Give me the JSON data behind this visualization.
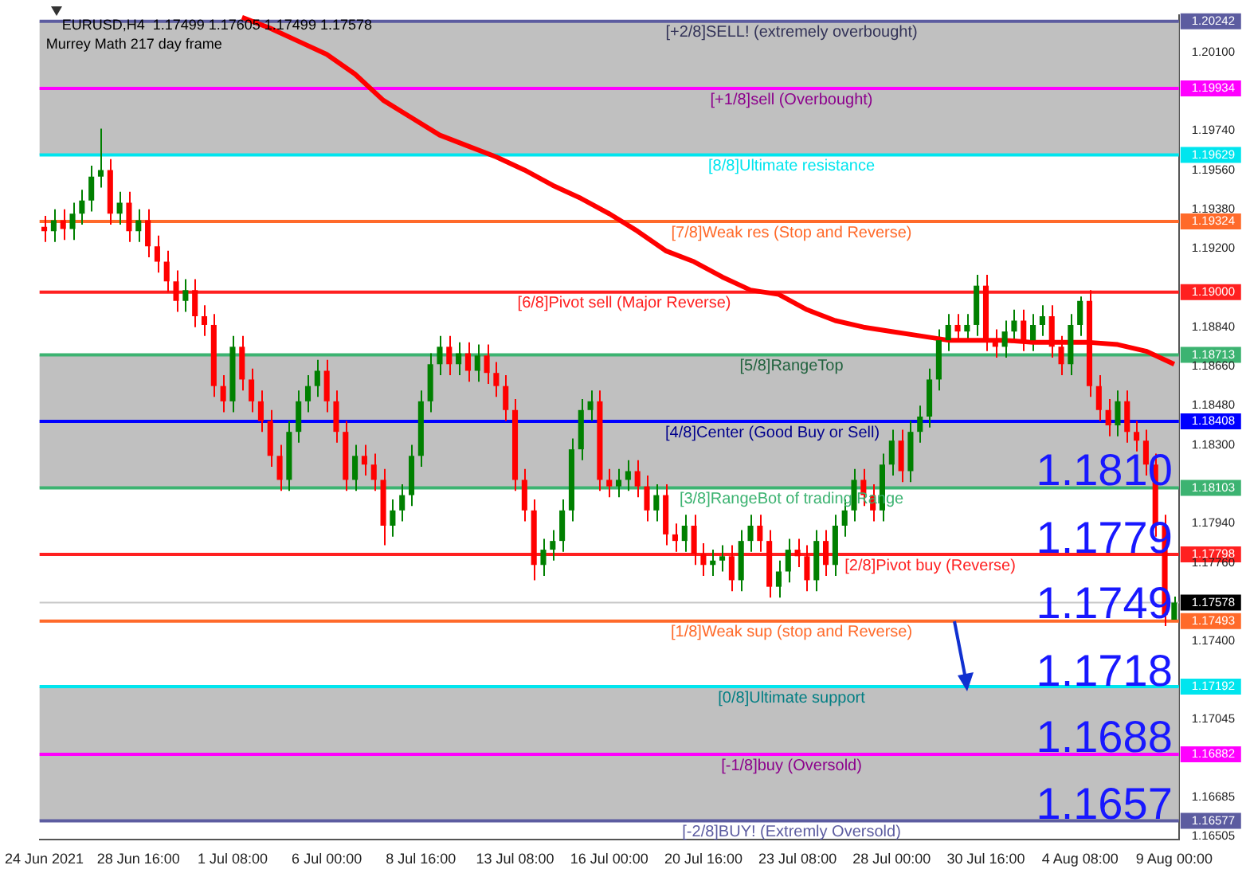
{
  "chart_data": {
    "type": "candlestick",
    "title": "EURUSD,H4  1.17499 1.17605 1.17499 1.17578",
    "subtitle": "Murrey Math 217 day frame",
    "categories": [
      "24 Jun 2021",
      null,
      null,
      null,
      null,
      null,
      null,
      null,
      null,
      null,
      "28 Jun 16:00",
      null,
      null,
      null,
      null,
      null,
      null,
      null,
      null,
      null,
      "1 Jul 08:00",
      null,
      null,
      null,
      null,
      null,
      null,
      null,
      null,
      null,
      "6 Jul 00:00",
      null,
      null,
      null,
      null,
      null,
      null,
      null,
      null,
      null,
      "8 Jul 16:00",
      null,
      null,
      null,
      null,
      null,
      null,
      null,
      null,
      null,
      "13 Jul 08:00",
      null,
      null,
      null,
      null,
      null,
      null,
      null,
      null,
      null,
      "16 Jul 00:00",
      null,
      null,
      null,
      null,
      null,
      null,
      null,
      null,
      null,
      "20 Jul 16:00",
      null,
      null,
      null,
      null,
      null,
      null,
      null,
      null,
      null,
      "23 Jul 08:00",
      null,
      null,
      null,
      null,
      null,
      null,
      null,
      null,
      null,
      "28 Jul 00:00",
      null,
      null,
      null,
      null,
      null,
      null,
      null,
      null,
      null,
      "30 Jul 16:00",
      null,
      null,
      null,
      null,
      null,
      null,
      null,
      null,
      null,
      "4 Aug 08:00",
      null,
      null,
      null,
      null,
      null,
      null,
      null,
      null,
      null,
      "9 Aug 00:00"
    ],
    "series": [
      {
        "type": "candlestick",
        "ohlc": [
          [
            1.193,
            1.1935,
            1.1923,
            1.1928
          ],
          [
            1.1928,
            1.1938,
            1.1923,
            1.1933
          ],
          [
            1.1933,
            1.1938,
            1.1924,
            1.1929
          ],
          [
            1.1929,
            1.1941,
            1.1924,
            1.1936
          ],
          [
            1.1936,
            1.1947,
            1.1931,
            1.1942
          ],
          [
            1.1942,
            1.1958,
            1.1937,
            1.1953
          ],
          [
            1.1953,
            1.1975,
            1.1948,
            1.1956
          ],
          [
            1.1956,
            1.1961,
            1.1931,
            1.1936
          ],
          [
            1.1936,
            1.1946,
            1.1931,
            1.1941
          ],
          [
            1.1941,
            1.1946,
            1.1923,
            1.1928
          ],
          [
            1.1928,
            1.1938,
            1.1923,
            1.1933
          ],
          [
            1.1933,
            1.1938,
            1.1916,
            1.1921
          ],
          [
            1.1921,
            1.1926,
            1.1909,
            1.1914
          ],
          [
            1.1914,
            1.1919,
            1.19,
            1.1905
          ],
          [
            1.1905,
            1.191,
            1.1891,
            1.1896
          ],
          [
            1.1896,
            1.1906,
            1.1891,
            1.1901
          ],
          [
            1.1901,
            1.1906,
            1.1884,
            1.1889
          ],
          [
            1.1889,
            1.1894,
            1.188,
            1.1885
          ],
          [
            1.1885,
            1.189,
            1.1852,
            1.1857
          ],
          [
            1.1857,
            1.1862,
            1.1845,
            1.185
          ],
          [
            1.185,
            1.188,
            1.1845,
            1.1875
          ],
          [
            1.1875,
            1.188,
            1.1855,
            1.186
          ],
          [
            1.186,
            1.1865,
            1.1845,
            1.185
          ],
          [
            1.185,
            1.1855,
            1.1836,
            1.1841
          ],
          [
            1.1841,
            1.1846,
            1.182,
            1.1825
          ],
          [
            1.1825,
            1.183,
            1.1809,
            1.1814
          ],
          [
            1.1814,
            1.1841,
            1.1809,
            1.1836
          ],
          [
            1.1836,
            1.1855,
            1.1831,
            1.185
          ],
          [
            1.185,
            1.1862,
            1.1845,
            1.1857
          ],
          [
            1.1857,
            1.1869,
            1.1852,
            1.1864
          ],
          [
            1.1864,
            1.1869,
            1.1845,
            1.185
          ],
          [
            1.185,
            1.1855,
            1.1831,
            1.1836
          ],
          [
            1.1836,
            1.1841,
            1.1809,
            1.1814
          ],
          [
            1.1814,
            1.183,
            1.1809,
            1.1825
          ],
          [
            1.1825,
            1.183,
            1.1816,
            1.1821
          ],
          [
            1.1821,
            1.1826,
            1.1809,
            1.1814
          ],
          [
            1.1814,
            1.1819,
            1.1784,
            1.1793
          ],
          [
            1.1793,
            1.1805,
            1.1788,
            1.18
          ],
          [
            1.18,
            1.1812,
            1.1795,
            1.1807
          ],
          [
            1.1807,
            1.183,
            1.1802,
            1.1825
          ],
          [
            1.1825,
            1.1855,
            1.182,
            1.185
          ],
          [
            1.185,
            1.1872,
            1.1845,
            1.1867
          ],
          [
            1.1867,
            1.188,
            1.1862,
            1.1875
          ],
          [
            1.1875,
            1.188,
            1.1862,
            1.1867
          ],
          [
            1.1867,
            1.1877,
            1.1862,
            1.1872
          ],
          [
            1.1872,
            1.1877,
            1.1859,
            1.1864
          ],
          [
            1.1864,
            1.1876,
            1.1859,
            1.1871
          ],
          [
            1.1871,
            1.1876,
            1.1858,
            1.1863
          ],
          [
            1.1863,
            1.1868,
            1.1852,
            1.1857
          ],
          [
            1.1857,
            1.1862,
            1.1841,
            1.1846
          ],
          [
            1.1846,
            1.1851,
            1.1809,
            1.1814
          ],
          [
            1.1814,
            1.1819,
            1.1795,
            1.18
          ],
          [
            1.18,
            1.1805,
            1.1768,
            1.1775
          ],
          [
            1.1775,
            1.1787,
            1.177,
            1.1782
          ],
          [
            1.1782,
            1.1791,
            1.1777,
            1.1786
          ],
          [
            1.1786,
            1.1805,
            1.1781,
            1.18
          ],
          [
            1.18,
            1.1833,
            1.1795,
            1.1828
          ],
          [
            1.1828,
            1.1851,
            1.1823,
            1.1846
          ],
          [
            1.1846,
            1.1855,
            1.1841,
            1.185
          ],
          [
            1.185,
            1.1855,
            1.1809,
            1.1814
          ],
          [
            1.1814,
            1.1819,
            1.1806,
            1.1811
          ],
          [
            1.1811,
            1.1819,
            1.1806,
            1.1814
          ],
          [
            1.1814,
            1.1823,
            1.1809,
            1.1818
          ],
          [
            1.1818,
            1.1823,
            1.1806,
            1.1811
          ],
          [
            1.1811,
            1.1816,
            1.1795,
            1.18
          ],
          [
            1.18,
            1.1812,
            1.1795,
            1.1807
          ],
          [
            1.1807,
            1.1812,
            1.1784,
            1.1789
          ],
          [
            1.1789,
            1.1794,
            1.1781,
            1.1786
          ],
          [
            1.1786,
            1.1798,
            1.1781,
            1.1793
          ],
          [
            1.1793,
            1.1798,
            1.1775,
            1.178
          ],
          [
            1.178,
            1.1785,
            1.177,
            1.1775
          ],
          [
            1.1775,
            1.1782,
            1.177,
            1.1777
          ],
          [
            1.1777,
            1.1784,
            1.1772,
            1.1779
          ],
          [
            1.1779,
            1.1784,
            1.1763,
            1.1768
          ],
          [
            1.1768,
            1.1791,
            1.1763,
            1.1786
          ],
          [
            1.1786,
            1.1798,
            1.1781,
            1.1793
          ],
          [
            1.1793,
            1.1798,
            1.1781,
            1.1786
          ],
          [
            1.1786,
            1.1791,
            1.176,
            1.1765
          ],
          [
            1.1765,
            1.1777,
            1.176,
            1.1772
          ],
          [
            1.1772,
            1.1787,
            1.1767,
            1.1782
          ],
          [
            1.1782,
            1.1787,
            1.1774,
            1.1779
          ],
          [
            1.1779,
            1.1784,
            1.1763,
            1.1768
          ],
          [
            1.1768,
            1.1791,
            1.1763,
            1.1786
          ],
          [
            1.1786,
            1.1791,
            1.177,
            1.1775
          ],
          [
            1.1775,
            1.1798,
            1.177,
            1.1793
          ],
          [
            1.1793,
            1.1805,
            1.1788,
            1.18
          ],
          [
            1.18,
            1.1819,
            1.1795,
            1.1814
          ],
          [
            1.1814,
            1.1819,
            1.1802,
            1.1807
          ],
          [
            1.1807,
            1.1812,
            1.1795,
            1.18
          ],
          [
            1.18,
            1.1826,
            1.1795,
            1.1821
          ],
          [
            1.1821,
            1.1837,
            1.1816,
            1.1832
          ],
          [
            1.1832,
            1.1837,
            1.1813,
            1.1818
          ],
          [
            1.1818,
            1.1841,
            1.1813,
            1.1836
          ],
          [
            1.1836,
            1.1848,
            1.1831,
            1.1843
          ],
          [
            1.1843,
            1.1865,
            1.1838,
            1.186
          ],
          [
            1.186,
            1.1883,
            1.1855,
            1.1878
          ],
          [
            1.1878,
            1.189,
            1.1873,
            1.1885
          ],
          [
            1.1885,
            1.189,
            1.1877,
            1.1882
          ],
          [
            1.1882,
            1.189,
            1.1877,
            1.1885
          ],
          [
            1.1885,
            1.1908,
            1.188,
            1.1903
          ],
          [
            1.1903,
            1.1908,
            1.1873,
            1.1878
          ],
          [
            1.1878,
            1.1883,
            1.187,
            1.1875
          ],
          [
            1.1875,
            1.1887,
            1.187,
            1.1882
          ],
          [
            1.1882,
            1.1892,
            1.1877,
            1.1887
          ],
          [
            1.1887,
            1.1892,
            1.1873,
            1.1878
          ],
          [
            1.1878,
            1.189,
            1.1873,
            1.1885
          ],
          [
            1.1885,
            1.1894,
            1.188,
            1.1889
          ],
          [
            1.1889,
            1.1894,
            1.187,
            1.1875
          ],
          [
            1.1875,
            1.188,
            1.1862,
            1.1867
          ],
          [
            1.1867,
            1.189,
            1.1862,
            1.1885
          ],
          [
            1.1885,
            1.1898,
            1.188,
            1.1896
          ],
          [
            1.1896,
            1.1901,
            1.1852,
            1.1857
          ],
          [
            1.1857,
            1.1862,
            1.1841,
            1.1846
          ],
          [
            1.1846,
            1.1851,
            1.1834,
            1.1839
          ],
          [
            1.1839,
            1.1855,
            1.1834,
            1.185
          ],
          [
            1.185,
            1.1855,
            1.1831,
            1.1836
          ],
          [
            1.1836,
            1.1841,
            1.1827,
            1.1832
          ],
          [
            1.1832,
            1.1837,
            1.1816,
            1.1821
          ],
          [
            1.1821,
            1.1826,
            1.1788,
            1.1793
          ],
          [
            1.1793,
            1.1798,
            1.1747,
            1.1752
          ],
          [
            1.17499,
            1.17605,
            1.17499,
            1.17578
          ]
        ],
        "colors": [
          "#ff0000",
          "#008000",
          "#ff0000",
          "#008000",
          "#008000",
          "#008000",
          "#008000",
          "#ff0000",
          "#008000",
          "#ff0000",
          "#008000",
          "#ff0000",
          "#ff0000",
          "#ff0000",
          "#ff0000",
          "#008000",
          "#ff0000",
          "#ff0000",
          "#ff0000",
          "#ff0000",
          "#008000",
          "#ff0000",
          "#ff0000",
          "#ff0000",
          "#ff0000",
          "#ff0000",
          "#008000",
          "#008000",
          "#008000",
          "#008000",
          "#ff0000",
          "#ff0000",
          "#ff0000",
          "#008000",
          "#ff0000",
          "#ff0000",
          "#ff0000",
          "#008000",
          "#008000",
          "#008000",
          "#008000",
          "#008000",
          "#008000",
          "#ff0000",
          "#008000",
          "#ff0000",
          "#008000",
          "#ff0000",
          "#ff0000",
          "#ff0000",
          "#ff0000",
          "#ff0000",
          "#ff0000",
          "#008000",
          "#008000",
          "#008000",
          "#008000",
          "#008000",
          "#008000",
          "#ff0000",
          "#ff0000",
          "#008000",
          "#008000",
          "#ff0000",
          "#ff0000",
          "#008000",
          "#ff0000",
          "#ff0000",
          "#008000",
          "#ff0000",
          "#ff0000",
          "#008000",
          "#008000",
          "#ff0000",
          "#008000",
          "#008000",
          "#ff0000",
          "#ff0000",
          "#008000",
          "#008000",
          "#ff0000",
          "#ff0000",
          "#008000",
          "#ff0000",
          "#008000",
          "#008000",
          "#008000",
          "#ff0000",
          "#ff0000",
          "#008000",
          "#008000",
          "#ff0000",
          "#008000",
          "#008000",
          "#008000",
          "#008000",
          "#008000",
          "#ff0000",
          "#008000",
          "#008000",
          "#ff0000",
          "#ff0000",
          "#008000",
          "#008000",
          "#ff0000",
          "#008000",
          "#008000",
          "#ff0000",
          "#ff0000",
          "#008000",
          "#008000",
          "#ff0000",
          "#ff0000",
          "#ff0000",
          "#008000",
          "#ff0000",
          "#ff0000",
          "#ff0000",
          "#ff0000",
          "#ff0000",
          "#008000"
        ]
      },
      {
        "type": "line",
        "color": "#ff0000",
        "values": [
          null,
          null,
          null,
          null,
          null,
          null,
          null,
          null,
          null,
          null,
          null,
          null,
          null,
          null,
          null,
          null,
          null,
          null,
          null,
          null,
          null,
          1.2026,
          null,
          null,
          1.2021,
          null,
          null,
          1.2015,
          null,
          null,
          1.2009,
          null,
          null,
          1.2,
          null,
          null,
          1.1988,
          null,
          null,
          1.198,
          null,
          null,
          1.1972,
          null,
          null,
          1.1967,
          null,
          null,
          1.1962,
          null,
          null,
          1.1956,
          null,
          null,
          1.1949,
          null,
          null,
          1.1943,
          null,
          null,
          1.1936,
          null,
          null,
          1.1928,
          null,
          null,
          1.1919,
          null,
          null,
          1.1914,
          null,
          null,
          1.1907,
          null,
          null,
          1.1901,
          null,
          null,
          1.1899,
          null,
          null,
          1.1892,
          null,
          null,
          1.1887,
          null,
          null,
          1.1884,
          null,
          null,
          1.1882,
          null,
          null,
          1.188,
          null,
          null,
          1.1878,
          null,
          null,
          1.1878,
          null,
          null,
          1.1878,
          null,
          null,
          1.1877,
          null,
          null,
          1.1877,
          null,
          null,
          1.1877,
          null,
          null,
          1.1876,
          null,
          null,
          1.1873,
          null,
          null,
          1.1867
        ]
      }
    ],
    "ylim": [
      1.1649,
      1.2027
    ],
    "yticks": [
      1.20242,
      {
        "value": 1.201,
        "label": "1.20100"
      },
      1.19934,
      {
        "value": 1.1974,
        "label": "1.19740"
      },
      1.19629,
      {
        "value": 1.1956,
        "label": "1.19560"
      },
      {
        "value": 1.1938,
        "label": "1.19380"
      },
      1.19324,
      {
        "value": 1.192,
        "label": "1.19200"
      },
      {
        "value": 1.19,
        "label": "1.19000"
      },
      {
        "value": 1.1884,
        "label": "1.18840"
      },
      1.18713,
      {
        "value": 1.1866,
        "label": "1.18660"
      },
      {
        "value": 1.1848,
        "label": "1.18480"
      },
      1.18408,
      {
        "value": 1.183,
        "label": "1.18300"
      },
      1.18103,
      {
        "value": 1.1794,
        "label": "1.17940"
      },
      1.17798,
      {
        "value": 1.1776,
        "label": "1.17760"
      },
      1.17578,
      1.17493,
      {
        "value": 1.174,
        "label": "1.17400"
      },
      1.17192,
      1.17045,
      1.16882,
      1.16685,
      1.16577,
      1.16505
    ],
    "bands": [
      {
        "axis": "y",
        "from": 1.19629,
        "to": 1.20242,
        "color": "#c0c0c0",
        "label": null
      },
      {
        "axis": "y",
        "from": 1.18103,
        "to": 1.18713,
        "color": "#c0c0c0",
        "label": null
      },
      {
        "axis": "y",
        "from": 1.16577,
        "to": 1.17192,
        "color": "#c0c0c0",
        "label": null
      }
    ],
    "ref_lines": [
      {
        "axis": "y",
        "value": 1.20242,
        "label": "[+2/8]SELL! (extremely overbought)",
        "color": "#5c5ca0"
      },
      {
        "axis": "y",
        "value": 1.19934,
        "label": "[+1/8]sell (Overbought)",
        "color": "#ff00ff"
      },
      {
        "axis": "y",
        "value": 1.19629,
        "label": "[8/8]Ultimate resistance",
        "color": "#00e5ee"
      },
      {
        "axis": "y",
        "value": 1.19324,
        "label": "[7/8]Weak res (Stop and Reverse)",
        "color": "#ff6a2a"
      },
      {
        "axis": "y",
        "value": 1.19,
        "label": "[6/8]Pivot sell (Major Reverse)",
        "color": "#ff2020"
      },
      {
        "axis": "y",
        "value": 1.18713,
        "label": "[5/8]RangeTop",
        "color": "#3cb371"
      },
      {
        "axis": "y",
        "value": 1.18408,
        "label": "[4/8]Center (Good Buy or Sell)",
        "color": "#0000ff"
      },
      {
        "axis": "y",
        "value": 1.18103,
        "label": "[3/8]RangeBot of trading Range",
        "color": "#3cb371"
      },
      {
        "axis": "y",
        "value": 1.17798,
        "label": "[2/8]Pivot buy (Reverse)",
        "color": "#ff2020"
      },
      {
        "axis": "y",
        "value": 1.17578,
        "label": null,
        "color": "#c8c8c8"
      },
      {
        "axis": "y",
        "value": 1.17493,
        "label": "[1/8]Weak sup (stop and Reverse)",
        "color": "#ff6a2a"
      },
      {
        "axis": "y",
        "value": 1.17192,
        "label": "[0/8]Ultimate support",
        "color": "#00e5ee"
      },
      {
        "axis": "y",
        "value": 1.16882,
        "label": "[-1/8]buy (Oversold)",
        "color": "#ff00ff"
      },
      {
        "axis": "y",
        "value": 1.16577,
        "label": "[-2/8]BUY! (Extremly Oversold)",
        "color": "#5c5ca0"
      }
    ],
    "annotations": [
      {
        "text": "1.1810",
        "y": 1.181
      },
      {
        "text": "1.1779",
        "y": 1.1779
      },
      {
        "text": "1.1749",
        "y": 1.1749
      },
      {
        "text": "1.1718",
        "y": 1.1718
      },
      {
        "text": "1.1688",
        "y": 1.1688
      },
      {
        "text": "1.1657",
        "y": 1.1657
      }
    ],
    "legend": false,
    "grid": false,
    "marker": "none"
  }
}
